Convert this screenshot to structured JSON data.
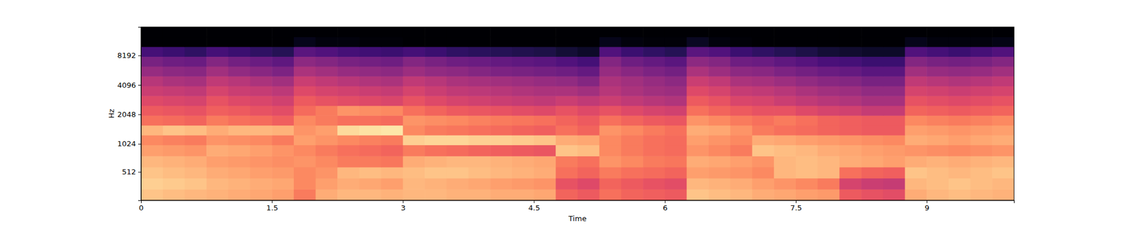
{
  "chart_data": {
    "type": "heatmap",
    "xlabel": "Time",
    "ylabel": "Hz",
    "xlim": [
      0,
      10
    ],
    "ylim": [
      0,
      16000
    ],
    "xticks": [
      0,
      1.5,
      3,
      4.5,
      6,
      7.5,
      9
    ],
    "yticks": [
      512,
      1024,
      2048,
      4096,
      8192
    ],
    "log": "y",
    "zlim": [
      -80,
      0
    ],
    "x_edges": [
      0,
      0.25,
      0.5,
      0.75,
      1,
      1.25,
      1.5,
      1.75,
      2,
      2.25,
      2.5,
      2.75,
      3,
      3.25,
      3.5,
      3.75,
      4,
      4.25,
      4.5,
      4.75,
      5,
      5.25,
      5.5,
      5.75,
      6,
      6.25,
      6.5,
      6.75,
      7,
      7.25,
      7.5,
      7.75,
      8,
      8.25,
      8.5,
      8.75,
      9,
      9.25,
      9.5,
      9.75,
      10
    ],
    "y_edges": [
      0,
      200,
      400,
      600,
      800,
      1000,
      1260,
      1587,
      2000,
      2520,
      3175,
      4000,
      5040,
      6350,
      8000,
      10079,
      12699,
      16000
    ],
    "values": [
      [
        -10,
        -11,
        -12,
        -13,
        -14,
        -15,
        -16,
        -22,
        -14,
        -12,
        -12,
        -13,
        -12,
        -12,
        -13,
        -13,
        -14,
        -14,
        -15,
        -26,
        -28,
        -24,
        -26,
        -27,
        -28,
        -10,
        -11,
        -12,
        -14,
        -15,
        -16,
        -17,
        -28,
        -30,
        -31,
        -14,
        -12,
        -11,
        -12,
        -13
      ],
      [
        -8,
        -9,
        -10,
        -12,
        -13,
        -14,
        -15,
        -20,
        -16,
        -14,
        -15,
        -16,
        -12,
        -13,
        -14,
        -15,
        -16,
        -17,
        -18,
        -30,
        -32,
        -26,
        -28,
        -30,
        -31,
        -12,
        -13,
        -14,
        -16,
        -18,
        -20,
        -22,
        -34,
        -36,
        -37,
        -12,
        -11,
        -10,
        -11,
        -12
      ],
      [
        -10,
        -11,
        -12,
        -14,
        -15,
        -16,
        -17,
        -20,
        -18,
        -12,
        -11,
        -12,
        -11,
        -10,
        -10,
        -11,
        -12,
        -13,
        -14,
        -24,
        -26,
        -22,
        -24,
        -25,
        -26,
        -16,
        -17,
        -18,
        -20,
        -12,
        -11,
        -12,
        -24,
        -26,
        -27,
        -10,
        -11,
        -12,
        -11,
        -10
      ],
      [
        -12,
        -13,
        -14,
        -16,
        -17,
        -18,
        -19,
        -18,
        -20,
        -22,
        -22,
        -23,
        -14,
        -13,
        -12,
        -12,
        -13,
        -14,
        -15,
        -22,
        -24,
        -18,
        -20,
        -22,
        -23,
        -14,
        -15,
        -16,
        -18,
        -12,
        -11,
        -12,
        -14,
        -15,
        -16,
        -14,
        -13,
        -14,
        -13,
        -12
      ],
      [
        -16,
        -17,
        -18,
        -14,
        -15,
        -16,
        -18,
        -20,
        -22,
        -24,
        -25,
        -26,
        -22,
        -24,
        -25,
        -26,
        -27,
        -28,
        -29,
        -10,
        -11,
        -20,
        -22,
        -24,
        -25,
        -18,
        -20,
        -22,
        -10,
        -11,
        -12,
        -14,
        -15,
        -16,
        -17,
        -18,
        -19,
        -20,
        -19,
        -18
      ],
      [
        -20,
        -21,
        -22,
        -18,
        -19,
        -20,
        -22,
        -16,
        -18,
        -20,
        -21,
        -22,
        -8,
        -7,
        -7,
        -8,
        -8,
        -9,
        -10,
        -14,
        -15,
        -20,
        -22,
        -24,
        -25,
        -16,
        -18,
        -20,
        -14,
        -15,
        -16,
        -17,
        -18,
        -19,
        -20,
        -14,
        -15,
        -16,
        -15,
        -14
      ],
      [
        -12,
        -10,
        -11,
        -14,
        -12,
        -12,
        -13,
        -18,
        -16,
        -6,
        -5,
        -4,
        -20,
        -22,
        -23,
        -24,
        -25,
        -26,
        -27,
        -24,
        -26,
        -18,
        -20,
        -22,
        -24,
        -14,
        -15,
        -18,
        -22,
        -24,
        -25,
        -26,
        -27,
        -28,
        -28,
        -16,
        -17,
        -18,
        -17,
        -16
      ],
      [
        -24,
        -25,
        -26,
        -22,
        -24,
        -25,
        -27,
        -20,
        -22,
        -24,
        -24,
        -25,
        -18,
        -19,
        -20,
        -21,
        -22,
        -23,
        -24,
        -26,
        -28,
        -24,
        -26,
        -28,
        -29,
        -18,
        -20,
        -22,
        -24,
        -22,
        -24,
        -26,
        -27,
        -28,
        -28,
        -20,
        -21,
        -22,
        -21,
        -20
      ],
      [
        -28,
        -29,
        -30,
        -27,
        -28,
        -30,
        -31,
        -25,
        -22,
        -18,
        -19,
        -20,
        -24,
        -26,
        -28,
        -29,
        -30,
        -31,
        -32,
        -30,
        -32,
        -30,
        -32,
        -34,
        -35,
        -24,
        -26,
        -28,
        -30,
        -30,
        -32,
        -34,
        -35,
        -37,
        -37,
        -26,
        -27,
        -28,
        -27,
        -26
      ],
      [
        -32,
        -33,
        -34,
        -30,
        -32,
        -33,
        -35,
        -28,
        -30,
        -31,
        -32,
        -33,
        -30,
        -32,
        -34,
        -35,
        -36,
        -37,
        -38,
        -36,
        -38,
        -36,
        -38,
        -40,
        -41,
        -28,
        -30,
        -33,
        -34,
        -36,
        -38,
        -40,
        -41,
        -43,
        -43,
        -30,
        -31,
        -32,
        -31,
        -30
      ],
      [
        -36,
        -37,
        -38,
        -34,
        -36,
        -37,
        -39,
        -32,
        -34,
        -35,
        -36,
        -37,
        -34,
        -36,
        -38,
        -39,
        -40,
        -41,
        -42,
        -42,
        -44,
        -40,
        -42,
        -44,
        -45,
        -32,
        -34,
        -37,
        -38,
        -40,
        -42,
        -44,
        -45,
        -47,
        -47,
        -34,
        -35,
        -36,
        -35,
        -34
      ],
      [
        -40,
        -42,
        -43,
        -38,
        -40,
        -42,
        -44,
        -36,
        -38,
        -40,
        -41,
        -42,
        -38,
        -40,
        -42,
        -43,
        -44,
        -45,
        -46,
        -47,
        -50,
        -42,
        -44,
        -46,
        -48,
        -36,
        -38,
        -42,
        -43,
        -45,
        -47,
        -49,
        -50,
        -52,
        -52,
        -38,
        -40,
        -41,
        -40,
        -38
      ],
      [
        -46,
        -48,
        -49,
        -44,
        -47,
        -49,
        -51,
        -42,
        -44,
        -46,
        -47,
        -48,
        -45,
        -47,
        -48,
        -50,
        -51,
        -52,
        -53,
        -54,
        -56,
        -46,
        -49,
        -51,
        -53,
        -42,
        -45,
        -48,
        -49,
        -51,
        -53,
        -55,
        -56,
        -58,
        -58,
        -44,
        -46,
        -47,
        -46,
        -44
      ],
      [
        -52,
        -54,
        -55,
        -50,
        -53,
        -55,
        -57,
        -48,
        -50,
        -52,
        -53,
        -54,
        -50,
        -52,
        -54,
        -55,
        -56,
        -57,
        -58,
        -60,
        -62,
        -50,
        -54,
        -56,
        -58,
        -48,
        -50,
        -54,
        -55,
        -57,
        -59,
        -61,
        -62,
        -64,
        -64,
        -50,
        -52,
        -53,
        -52,
        -50
      ],
      [
        -62,
        -64,
        -66,
        -62,
        -64,
        -66,
        -68,
        -58,
        -60,
        -62,
        -63,
        -64,
        -62,
        -64,
        -66,
        -67,
        -68,
        -69,
        -70,
        -72,
        -74,
        -60,
        -64,
        -66,
        -68,
        -58,
        -60,
        -64,
        -66,
        -68,
        -70,
        -72,
        -73,
        -74,
        -74,
        -60,
        -62,
        -64,
        -62,
        -60
      ],
      [
        -80,
        -80,
        -80,
        -80,
        -80,
        -80,
        -80,
        -76,
        -78,
        -78,
        -79,
        -79,
        -80,
        -80,
        -80,
        -80,
        -80,
        -80,
        -80,
        -80,
        -80,
        -76,
        -78,
        -79,
        -79,
        -75,
        -78,
        -79,
        -80,
        -80,
        -80,
        -80,
        -80,
        -80,
        -80,
        -76,
        -78,
        -78,
        -78,
        -77
      ],
      [
        -80,
        -80,
        -80,
        -80,
        -80,
        -80,
        -80,
        -80,
        -80,
        -80,
        -80,
        -80,
        -80,
        -80,
        -80,
        -80,
        -80,
        -80,
        -80,
        -80,
        -80,
        -80,
        -80,
        -80,
        -80,
        -80,
        -80,
        -80,
        -80,
        -80,
        -80,
        -80,
        -80,
        -80,
        -80,
        -80,
        -80,
        -80,
        -80,
        -80
      ]
    ]
  }
}
